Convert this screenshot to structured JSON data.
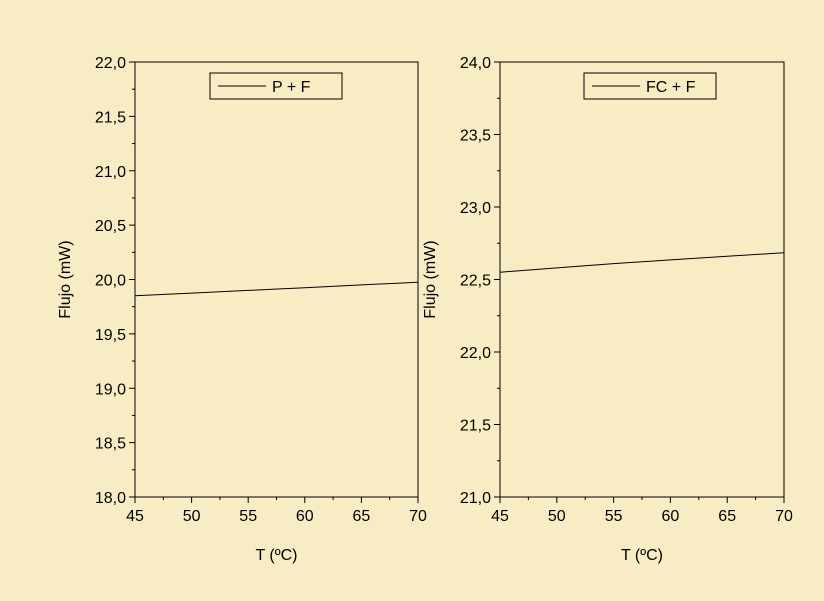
{
  "background_color": "#f7ecc4",
  "chart_data": [
    {
      "type": "line",
      "title": "",
      "xlabel": "T (ºC)",
      "ylabel": "Flujo (mW)",
      "xlim": [
        45,
        70
      ],
      "ylim": [
        18.0,
        22.0
      ],
      "x_ticks": [
        "45",
        "50",
        "55",
        "60",
        "65",
        "70"
      ],
      "y_ticks": [
        "18,0",
        "18,5",
        "19,0",
        "19,5",
        "20,0",
        "20,5",
        "21,0",
        "21,5",
        "22,0"
      ],
      "legend_position": "top-right",
      "grid": false,
      "series": [
        {
          "name": "P + F",
          "color": "#000000",
          "x": [
            45,
            50,
            55,
            60,
            65,
            70
          ],
          "y": [
            19.85,
            19.875,
            19.9,
            19.925,
            19.95,
            19.975
          ]
        }
      ]
    },
    {
      "type": "line",
      "title": "",
      "xlabel": "T (ºC)",
      "ylabel": "Flujo (mW)",
      "xlim": [
        45,
        70
      ],
      "ylim": [
        21.0,
        24.0
      ],
      "x_ticks": [
        "45",
        "50",
        "55",
        "60",
        "65",
        "70"
      ],
      "y_ticks": [
        "21,0",
        "21,5",
        "22,0",
        "22,5",
        "23,0",
        "23,5",
        "24,0"
      ],
      "legend_position": "top-right",
      "grid": false,
      "series": [
        {
          "name": "FC + F",
          "color": "#000000",
          "x": [
            45,
            50,
            55,
            60,
            65,
            70
          ],
          "y": [
            22.55,
            22.58,
            22.61,
            22.635,
            22.66,
            22.685
          ]
        }
      ]
    }
  ]
}
